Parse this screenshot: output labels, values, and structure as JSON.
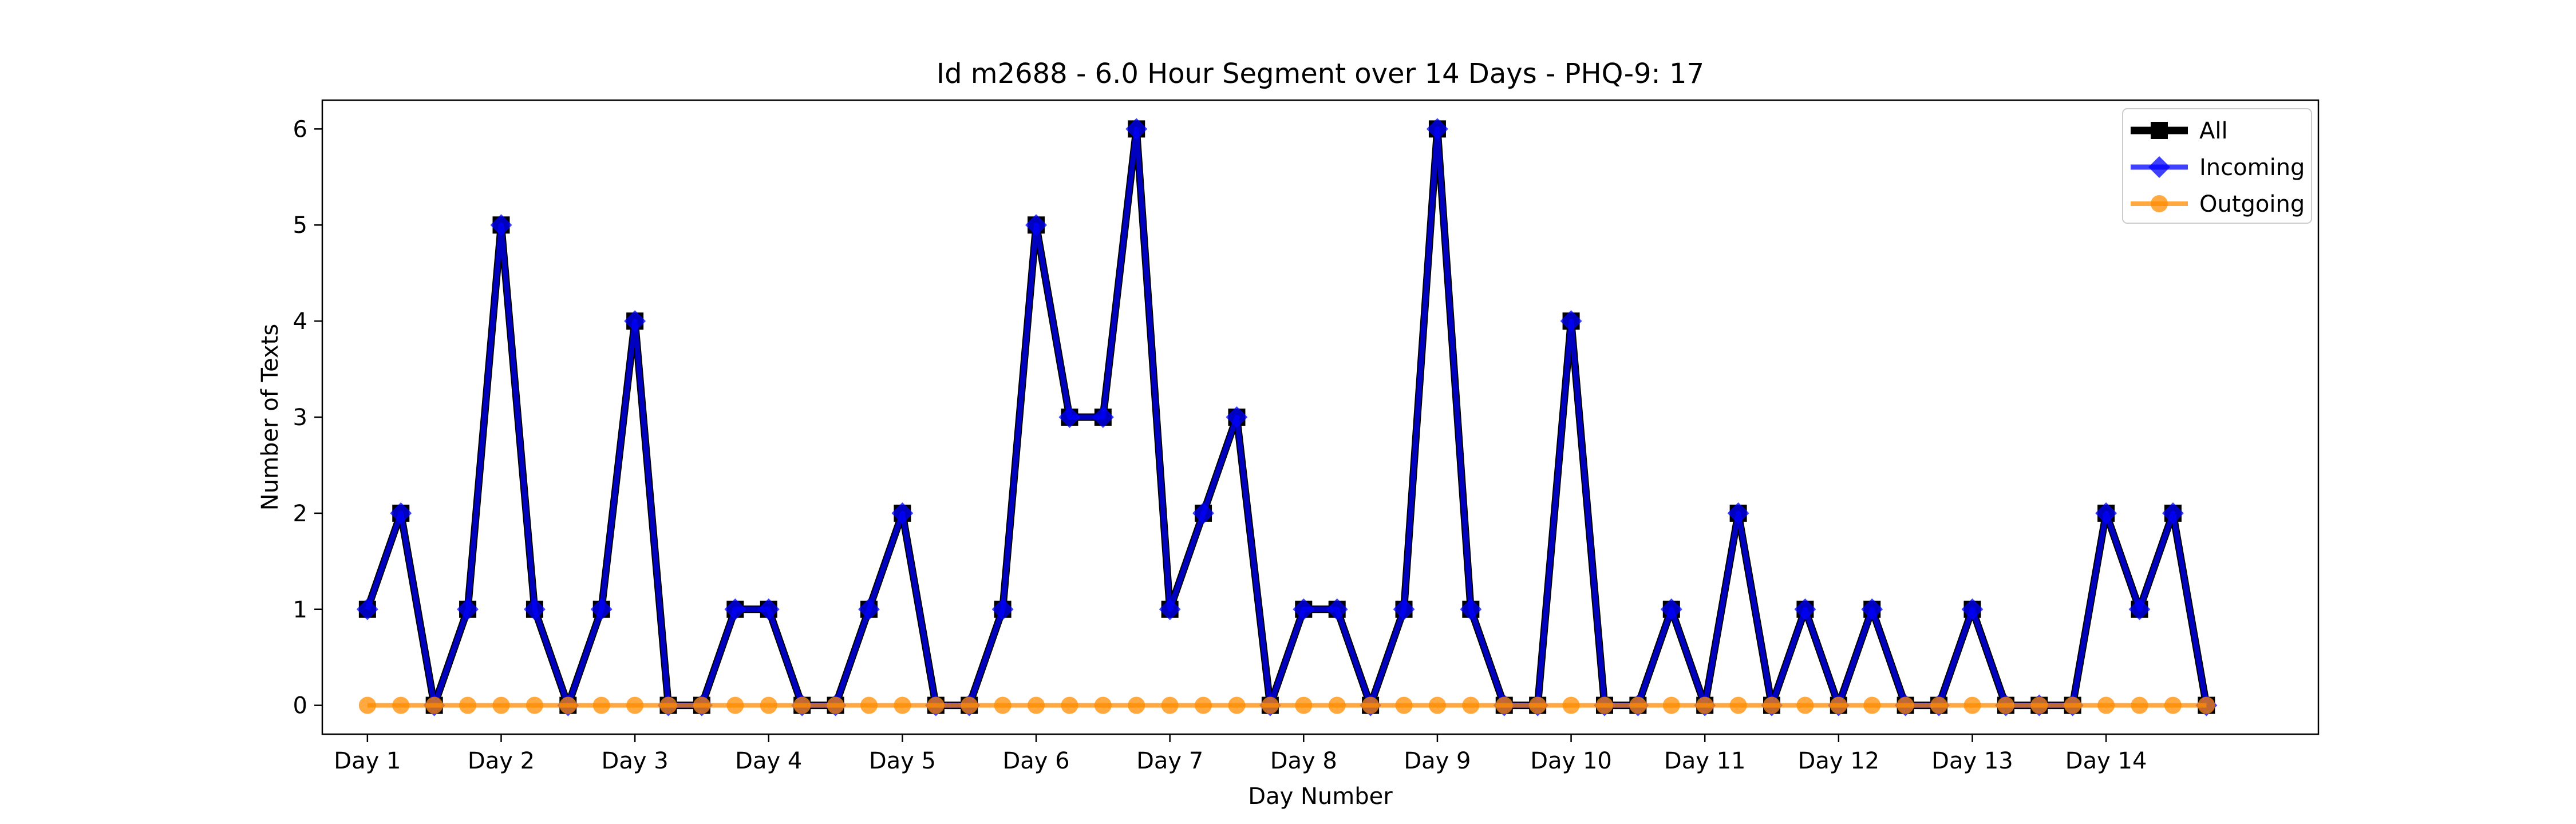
{
  "chart_data": {
    "type": "line",
    "title": "Id m2688 - 6.0 Hour Segment over 14 Days - PHQ-9: 17",
    "xlabel": "Day Number",
    "ylabel": "Number of Texts",
    "x_tick_labels": [
      "Day 1",
      "Day 2",
      "Day 3",
      "Day 4",
      "Day 5",
      "Day 6",
      "Day 7",
      "Day 8",
      "Day 9",
      "Day 10",
      "Day 11",
      "Day 12",
      "Day 13",
      "Day 14"
    ],
    "y_ticks": [
      0,
      1,
      2,
      3,
      4,
      5,
      6
    ],
    "ylim": [
      -0.3,
      6.3
    ],
    "xlim": [
      -1.35,
      58.35
    ],
    "grid": false,
    "legend_position": "top-right",
    "colors": {
      "all": "#000000",
      "incoming": "#0000ff",
      "outgoing": "#ff8c00"
    },
    "series": [
      {
        "name": "All",
        "marker": "square",
        "values": [
          1,
          2,
          0,
          1,
          5,
          1,
          0,
          1,
          4,
          0,
          0,
          1,
          1,
          0,
          0,
          1,
          2,
          0,
          0,
          1,
          5,
          3,
          3,
          6,
          1,
          2,
          3,
          0,
          1,
          1,
          0,
          1,
          6,
          1,
          0,
          0,
          4,
          0,
          0,
          1,
          0,
          2,
          0,
          1,
          0,
          1,
          0,
          0,
          1,
          0,
          0,
          0,
          2,
          1,
          2,
          0
        ]
      },
      {
        "name": "Incoming",
        "marker": "diamond",
        "values": [
          1,
          2,
          0,
          1,
          5,
          1,
          0,
          1,
          4,
          0,
          0,
          1,
          1,
          0,
          0,
          1,
          2,
          0,
          0,
          1,
          5,
          3,
          3,
          6,
          1,
          2,
          3,
          0,
          1,
          1,
          0,
          1,
          6,
          1,
          0,
          0,
          4,
          0,
          0,
          1,
          0,
          2,
          0,
          1,
          0,
          1,
          0,
          0,
          1,
          0,
          0,
          0,
          2,
          1,
          2,
          0
        ]
      },
      {
        "name": "Outgoing",
        "marker": "circle",
        "values": [
          0,
          0,
          0,
          0,
          0,
          0,
          0,
          0,
          0,
          0,
          0,
          0,
          0,
          0,
          0,
          0,
          0,
          0,
          0,
          0,
          0,
          0,
          0,
          0,
          0,
          0,
          0,
          0,
          0,
          0,
          0,
          0,
          0,
          0,
          0,
          0,
          0,
          0,
          0,
          0,
          0,
          0,
          0,
          0,
          0,
          0,
          0,
          0,
          0,
          0,
          0,
          0,
          0,
          0,
          0,
          0
        ]
      }
    ]
  }
}
